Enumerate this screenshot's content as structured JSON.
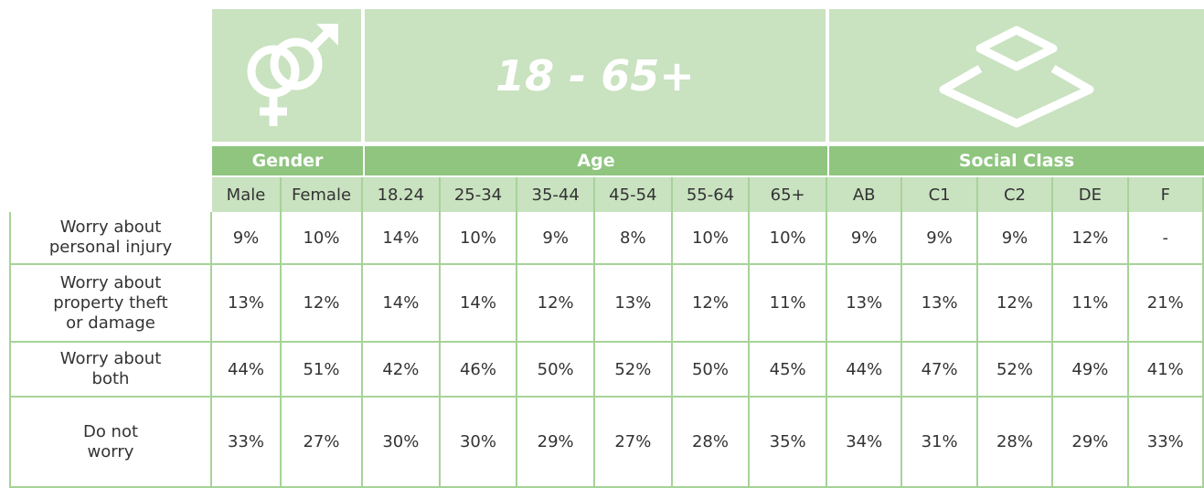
{
  "table": {
    "banner": "18 - 65+",
    "groups": [
      {
        "label": "Gender",
        "columns": [
          "Male",
          "Female"
        ]
      },
      {
        "label": "Age",
        "columns": [
          "18.24",
          "25-34",
          "35-44",
          "45-54",
          "55-64",
          "65+"
        ]
      },
      {
        "label": "Social Class",
        "columns": [
          "AB",
          "C1",
          "C2",
          "DE",
          "F"
        ]
      }
    ],
    "rows": [
      {
        "label": "Worry about\npersonal injury",
        "values": [
          "9%",
          "10%",
          "14%",
          "10%",
          "9%",
          "8%",
          "10%",
          "10%",
          "9%",
          "9%",
          "9%",
          "12%",
          "-"
        ]
      },
      {
        "label": "Worry about\nproperty theft\nor damage",
        "values": [
          "13%",
          "12%",
          "14%",
          "14%",
          "12%",
          "13%",
          "12%",
          "11%",
          "13%",
          "13%",
          "12%",
          "11%",
          "21%"
        ]
      },
      {
        "label": "Worry about\nboth",
        "values": [
          "44%",
          "51%",
          "42%",
          "46%",
          "50%",
          "52%",
          "50%",
          "45%",
          "44%",
          "47%",
          "52%",
          "49%",
          "41%"
        ]
      },
      {
        "label": "Do not\nworry",
        "values": [
          "33%",
          "27%",
          "30%",
          "30%",
          "29%",
          "27%",
          "28%",
          "35%",
          "34%",
          "31%",
          "28%",
          "29%",
          "33%"
        ]
      }
    ]
  }
}
